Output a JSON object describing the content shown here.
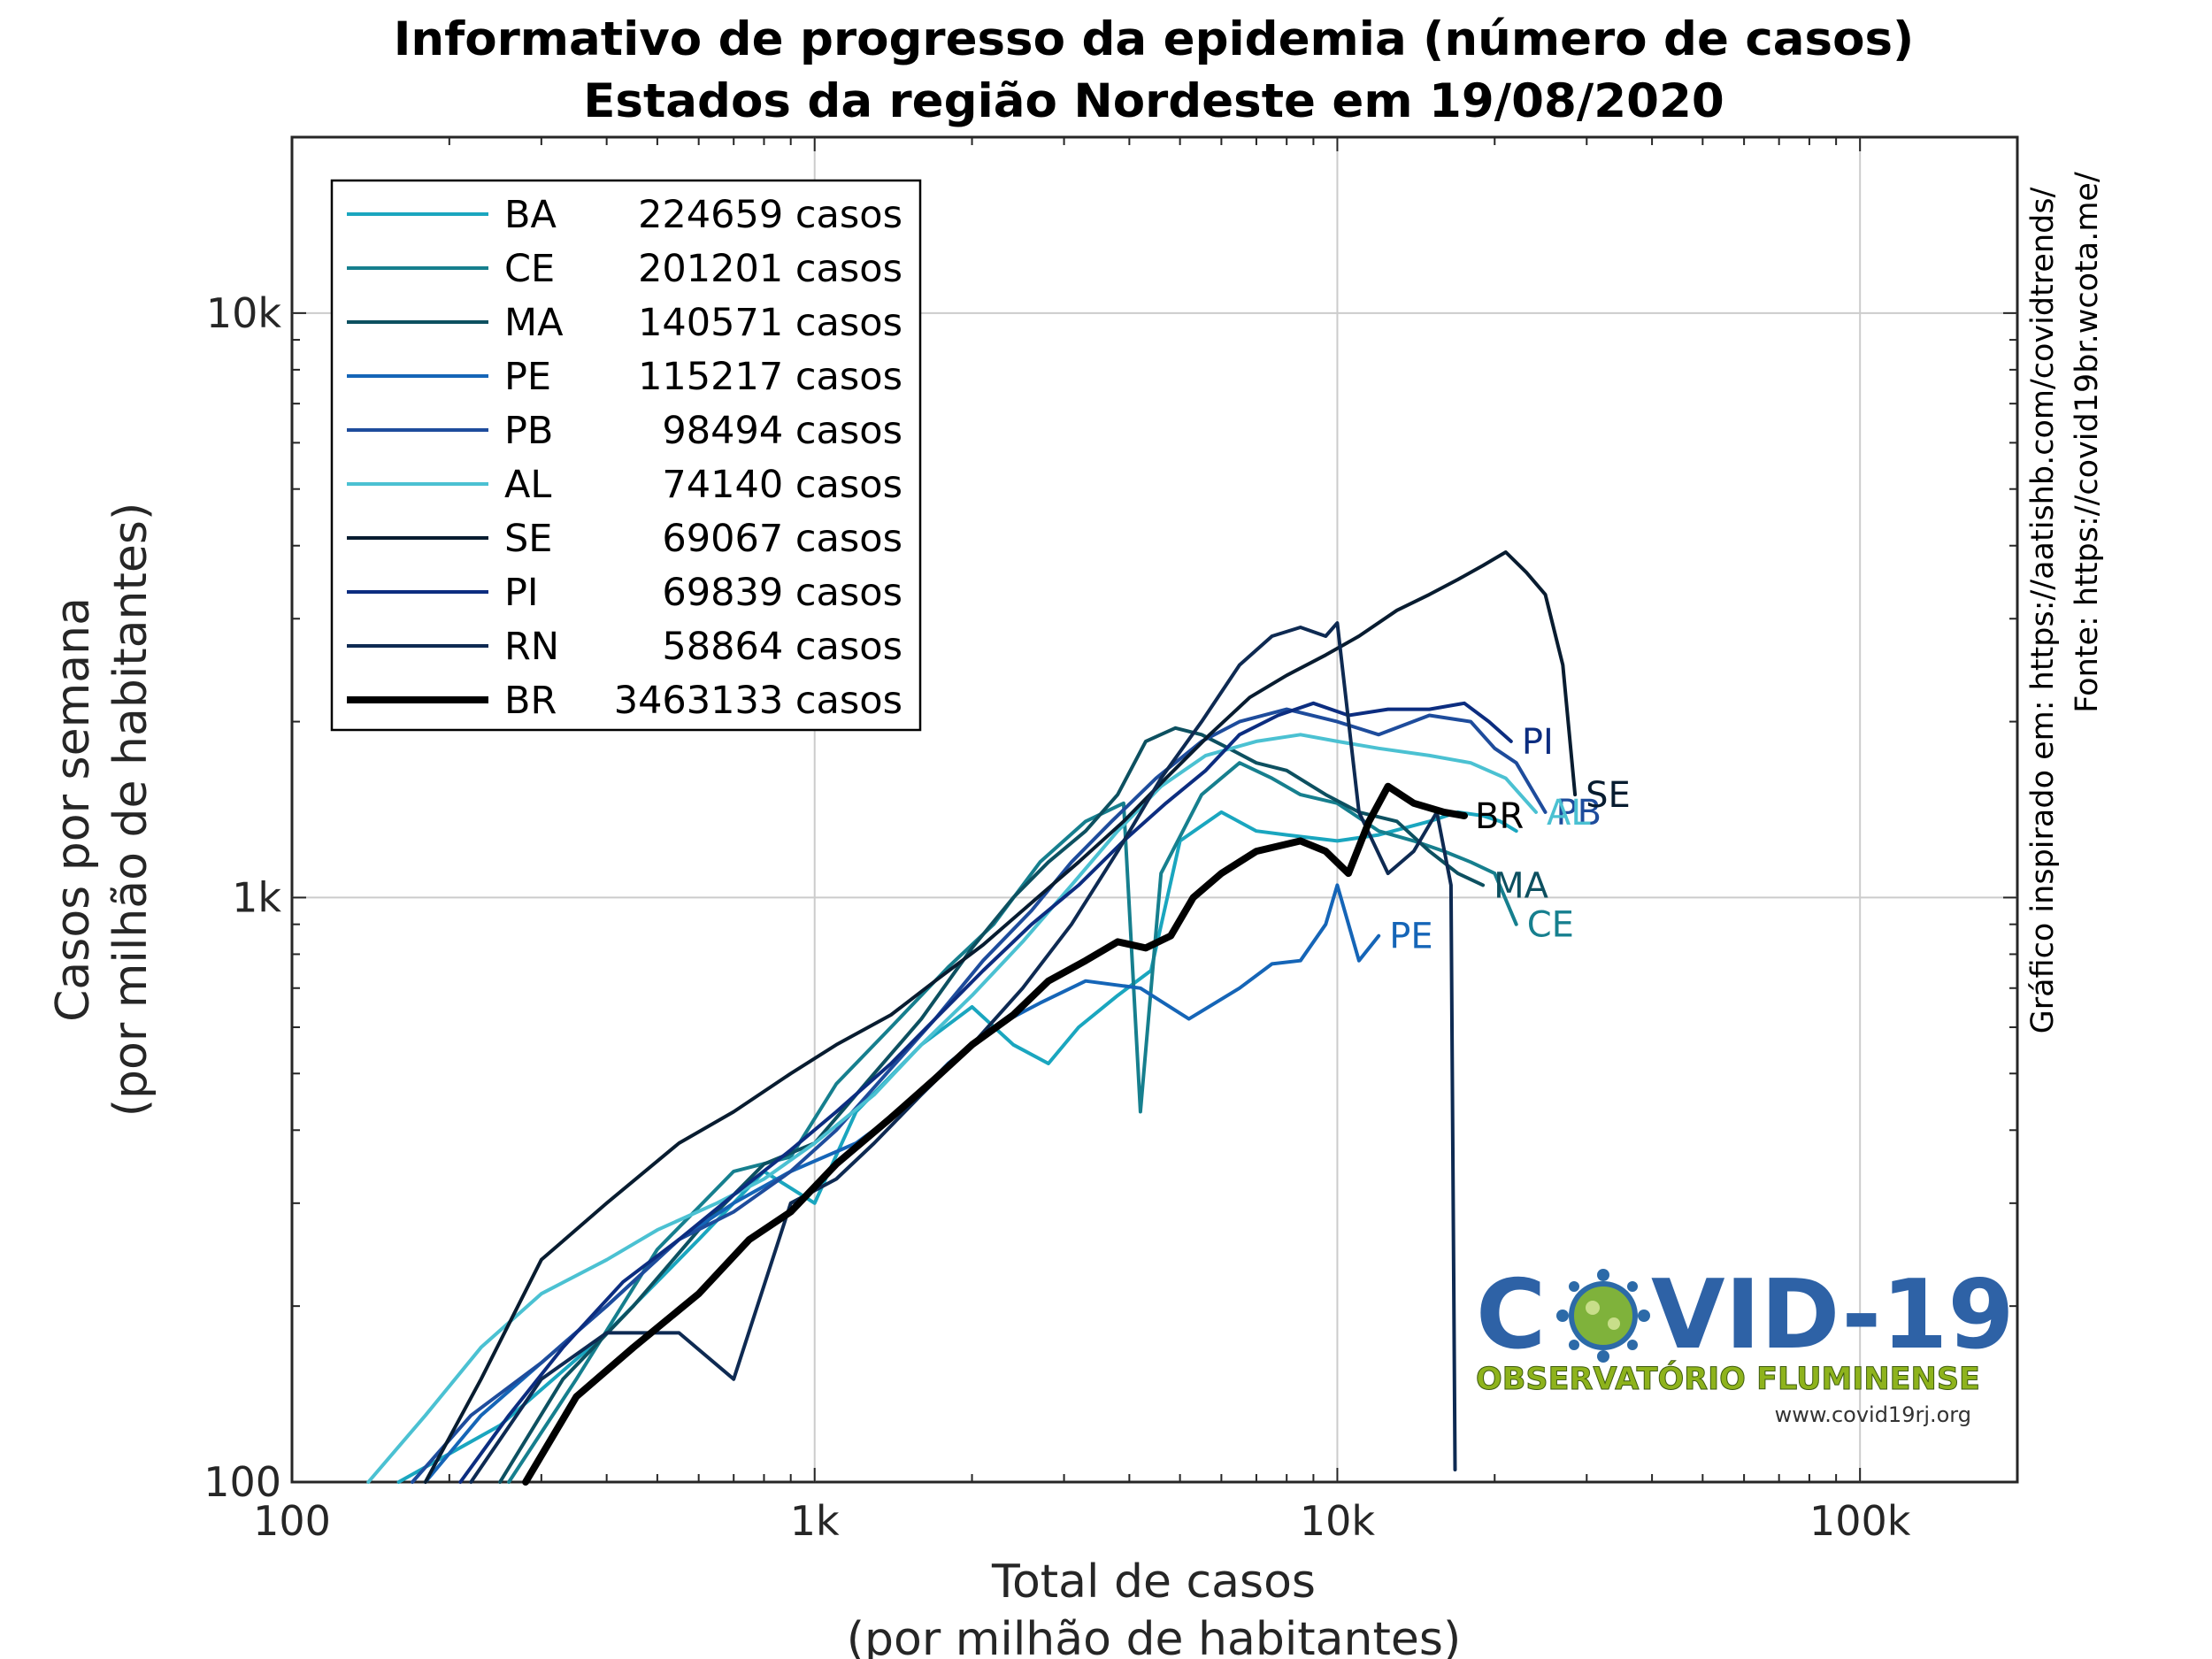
{
  "chart_data": {
    "type": "line",
    "title": "Informativo de progresso da epidemia (número de casos)",
    "subtitle": "Estados da região Nordeste em 19/08/2020",
    "xlabel_line1": "Total de casos",
    "xlabel_line2": "(por milhão de habitantes)",
    "ylabel_line1": "Casos por semana",
    "ylabel_line2": "(por milhão de habitantes)",
    "x_scale": "log",
    "y_scale": "log",
    "xlim": [
      100,
      200000
    ],
    "ylim": [
      100,
      20000
    ],
    "x_ticks": [
      {
        "value": 100,
        "label": "100"
      },
      {
        "value": 1000,
        "label": "1k"
      },
      {
        "value": 10000,
        "label": "10k"
      },
      {
        "value": 100000,
        "label": "100k"
      }
    ],
    "y_ticks": [
      {
        "value": 100,
        "label": "100"
      },
      {
        "value": 1000,
        "label": "1k"
      },
      {
        "value": 10000,
        "label": "10k"
      }
    ],
    "grid": true,
    "legend_position": "top-left",
    "side_notes": [
      "Gráfico inspirado em: https://aatishb.com/covidtrends/",
      "Fonte: https://covid19br.wcota.me/"
    ],
    "series": [
      {
        "name": "BA",
        "legend": "224659 casos",
        "color": "#1aa6bf",
        "width": 4,
        "end_label": "",
        "points": [
          [
            160,
            100
          ],
          [
            250,
            125
          ],
          [
            400,
            180
          ],
          [
            600,
            260
          ],
          [
            800,
            340
          ],
          [
            1000,
            300
          ],
          [
            1200,
            430
          ],
          [
            1600,
            560
          ],
          [
            2000,
            650
          ],
          [
            2400,
            560
          ],
          [
            2800,
            520
          ],
          [
            3200,
            600
          ],
          [
            3800,
            680
          ],
          [
            4400,
            750
          ],
          [
            5000,
            1250
          ],
          [
            6000,
            1400
          ],
          [
            7000,
            1300
          ],
          [
            8000,
            1280
          ],
          [
            10000,
            1250
          ],
          [
            12000,
            1280
          ],
          [
            15000,
            1350
          ],
          [
            17000,
            1400
          ],
          [
            19000,
            1380
          ],
          [
            20500,
            1350
          ],
          [
            22000,
            1300
          ]
        ]
      },
      {
        "name": "CE",
        "legend": "201201 casos",
        "color": "#167f8e",
        "width": 4,
        "end_label": "CE",
        "points": [
          [
            260,
            100
          ],
          [
            350,
            150
          ],
          [
            500,
            250
          ],
          [
            700,
            340
          ],
          [
            900,
            360
          ],
          [
            1100,
            480
          ],
          [
            1400,
            600
          ],
          [
            1800,
            760
          ],
          [
            2200,
            900
          ],
          [
            2700,
            1150
          ],
          [
            3300,
            1350
          ],
          [
            3900,
            1450
          ],
          [
            4200,
            430
          ],
          [
            4600,
            1100
          ],
          [
            5500,
            1500
          ],
          [
            6500,
            1700
          ],
          [
            7500,
            1600
          ],
          [
            8500,
            1500
          ],
          [
            10000,
            1450
          ],
          [
            12000,
            1300
          ],
          [
            14000,
            1250
          ],
          [
            16000,
            1200
          ],
          [
            18000,
            1150
          ],
          [
            20000,
            1100
          ],
          [
            22000,
            900
          ]
        ]
      },
      {
        "name": "MA",
        "legend": "140571 casos",
        "color": "#0d5060",
        "width": 4,
        "end_label": "MA",
        "points": [
          [
            250,
            100
          ],
          [
            330,
            150
          ],
          [
            450,
            200
          ],
          [
            600,
            270
          ],
          [
            800,
            350
          ],
          [
            1000,
            380
          ],
          [
            1300,
            500
          ],
          [
            1600,
            620
          ],
          [
            2000,
            820
          ],
          [
            2400,
            1000
          ],
          [
            2800,
            1150
          ],
          [
            3300,
            1300
          ],
          [
            3800,
            1500
          ],
          [
            4300,
            1850
          ],
          [
            4900,
            1950
          ],
          [
            5500,
            1900
          ],
          [
            6200,
            1800
          ],
          [
            7000,
            1700
          ],
          [
            8000,
            1650
          ],
          [
            9500,
            1500
          ],
          [
            11000,
            1400
          ],
          [
            13000,
            1350
          ],
          [
            15000,
            1200
          ],
          [
            17000,
            1100
          ],
          [
            19000,
            1050
          ]
        ]
      },
      {
        "name": "PE",
        "legend": "115217 casos",
        "color": "#1565b7",
        "width": 4,
        "end_label": "PE",
        "points": [
          [
            180,
            100
          ],
          [
            230,
            130
          ],
          [
            300,
            160
          ],
          [
            400,
            200
          ],
          [
            550,
            260
          ],
          [
            700,
            300
          ],
          [
            900,
            340
          ],
          [
            1200,
            380
          ],
          [
            1500,
            440
          ],
          [
            1800,
            520
          ],
          [
            2200,
            600
          ],
          [
            2700,
            660
          ],
          [
            3300,
            720
          ],
          [
            4200,
            700
          ],
          [
            5200,
            620
          ],
          [
            6500,
            700
          ],
          [
            7500,
            770
          ],
          [
            8500,
            780
          ],
          [
            9500,
            900
          ],
          [
            10000,
            1050
          ],
          [
            11000,
            780
          ],
          [
            12000,
            860
          ]
        ]
      },
      {
        "name": "PB",
        "legend": "98494 casos",
        "color": "#1e4c9c",
        "width": 4,
        "end_label": "PB",
        "points": [
          [
            170,
            100
          ],
          [
            220,
            130
          ],
          [
            300,
            160
          ],
          [
            400,
            200
          ],
          [
            550,
            260
          ],
          [
            700,
            290
          ],
          [
            900,
            340
          ],
          [
            1100,
            400
          ],
          [
            1400,
            510
          ],
          [
            1700,
            620
          ],
          [
            2100,
            780
          ],
          [
            2600,
            950
          ],
          [
            3100,
            1150
          ],
          [
            3700,
            1350
          ],
          [
            4500,
            1600
          ],
          [
            5500,
            1850
          ],
          [
            6500,
            2000
          ],
          [
            8000,
            2100
          ],
          [
            10000,
            2000
          ],
          [
            12000,
            1900
          ],
          [
            15000,
            2050
          ],
          [
            18000,
            2000
          ],
          [
            20000,
            1800
          ],
          [
            22000,
            1700
          ],
          [
            25000,
            1400
          ]
        ]
      },
      {
        "name": "AL",
        "legend": "74140 casos",
        "color": "#4bc1d2",
        "width": 4,
        "end_label": "AL",
        "points": [
          [
            140,
            100
          ],
          [
            180,
            130
          ],
          [
            230,
            170
          ],
          [
            300,
            210
          ],
          [
            400,
            240
          ],
          [
            500,
            270
          ],
          [
            650,
            300
          ],
          [
            800,
            330
          ],
          [
            1000,
            380
          ],
          [
            1300,
            460
          ],
          [
            1600,
            560
          ],
          [
            2000,
            680
          ],
          [
            2500,
            840
          ],
          [
            3100,
            1050
          ],
          [
            3800,
            1300
          ],
          [
            4600,
            1550
          ],
          [
            5600,
            1750
          ],
          [
            7000,
            1850
          ],
          [
            8500,
            1900
          ],
          [
            10000,
            1850
          ],
          [
            12000,
            1800
          ],
          [
            15000,
            1750
          ],
          [
            18000,
            1700
          ],
          [
            21000,
            1600
          ],
          [
            24000,
            1400
          ]
        ]
      },
      {
        "name": "SE",
        "legend": "69067 casos",
        "color": "#081c30",
        "width": 4,
        "end_label": "SE",
        "points": [
          [
            180,
            100
          ],
          [
            230,
            150
          ],
          [
            300,
            240
          ],
          [
            400,
            300
          ],
          [
            550,
            380
          ],
          [
            700,
            430
          ],
          [
            900,
            500
          ],
          [
            1100,
            560
          ],
          [
            1400,
            630
          ],
          [
            1700,
            720
          ],
          [
            2100,
            830
          ],
          [
            2600,
            980
          ],
          [
            3200,
            1150
          ],
          [
            3900,
            1350
          ],
          [
            4700,
            1600
          ],
          [
            5700,
            1900
          ],
          [
            6800,
            2200
          ],
          [
            8000,
            2400
          ],
          [
            9500,
            2600
          ],
          [
            11000,
            2800
          ],
          [
            13000,
            3100
          ],
          [
            15000,
            3300
          ],
          [
            17000,
            3500
          ],
          [
            19000,
            3700
          ],
          [
            21000,
            3900
          ],
          [
            23000,
            3600
          ],
          [
            25000,
            3300
          ],
          [
            27000,
            2500
          ],
          [
            28500,
            1500
          ]
        ]
      },
      {
        "name": "PI",
        "legend": "69839 casos",
        "color": "#0c2d80",
        "width": 4,
        "end_label": "PI",
        "points": [
          [
            210,
            100
          ],
          [
            260,
            130
          ],
          [
            330,
            170
          ],
          [
            430,
            220
          ],
          [
            550,
            260
          ],
          [
            700,
            310
          ],
          [
            900,
            370
          ],
          [
            1100,
            430
          ],
          [
            1400,
            520
          ],
          [
            1700,
            620
          ],
          [
            2100,
            750
          ],
          [
            2600,
            900
          ],
          [
            3200,
            1050
          ],
          [
            3900,
            1250
          ],
          [
            4700,
            1450
          ],
          [
            5600,
            1650
          ],
          [
            6500,
            1900
          ],
          [
            7700,
            2050
          ],
          [
            9000,
            2150
          ],
          [
            10500,
            2050
          ],
          [
            12500,
            2100
          ],
          [
            15000,
            2100
          ],
          [
            17500,
            2150
          ],
          [
            19500,
            2000
          ],
          [
            21500,
            1850
          ]
        ]
      },
      {
        "name": "RN",
        "legend": "58864 casos",
        "color": "#0e2a52",
        "width": 4,
        "end_label": "",
        "points": [
          [
            220,
            100
          ],
          [
            300,
            150
          ],
          [
            400,
            180
          ],
          [
            550,
            180
          ],
          [
            700,
            150
          ],
          [
            900,
            300
          ],
          [
            1100,
            330
          ],
          [
            1300,
            380
          ],
          [
            1600,
            460
          ],
          [
            2000,
            560
          ],
          [
            2500,
            700
          ],
          [
            3100,
            900
          ],
          [
            3800,
            1200
          ],
          [
            4600,
            1600
          ],
          [
            5500,
            2000
          ],
          [
            6500,
            2500
          ],
          [
            7500,
            2800
          ],
          [
            8500,
            2900
          ],
          [
            9500,
            2800
          ],
          [
            10000,
            2950
          ],
          [
            11000,
            1400
          ],
          [
            12500,
            1100
          ],
          [
            14000,
            1200
          ],
          [
            15500,
            1400
          ],
          [
            16500,
            1050
          ],
          [
            16800,
            105
          ]
        ]
      },
      {
        "name": "BR",
        "legend": "3463133 casos",
        "color": "#000000",
        "width": 8,
        "end_label": "BR",
        "points": [
          [
            280,
            100
          ],
          [
            350,
            140
          ],
          [
            450,
            170
          ],
          [
            600,
            210
          ],
          [
            750,
            260
          ],
          [
            900,
            290
          ],
          [
            1100,
            350
          ],
          [
            1400,
            420
          ],
          [
            1700,
            490
          ],
          [
            2000,
            560
          ],
          [
            2400,
            630
          ],
          [
            2800,
            720
          ],
          [
            3300,
            780
          ],
          [
            3800,
            840
          ],
          [
            4300,
            820
          ],
          [
            4800,
            860
          ],
          [
            5300,
            1000
          ],
          [
            6000,
            1100
          ],
          [
            7000,
            1200
          ],
          [
            8500,
            1250
          ],
          [
            9500,
            1200
          ],
          [
            10500,
            1100
          ],
          [
            11500,
            1350
          ],
          [
            12500,
            1550
          ],
          [
            14000,
            1450
          ],
          [
            16000,
            1400
          ],
          [
            17500,
            1380
          ]
        ]
      }
    ]
  },
  "logo": {
    "title_left": "C",
    "title_right": "VID-19",
    "subtitle": "OBSERVATÓRIO FLUMINENSE",
    "url": "www.covid19rj.org"
  }
}
